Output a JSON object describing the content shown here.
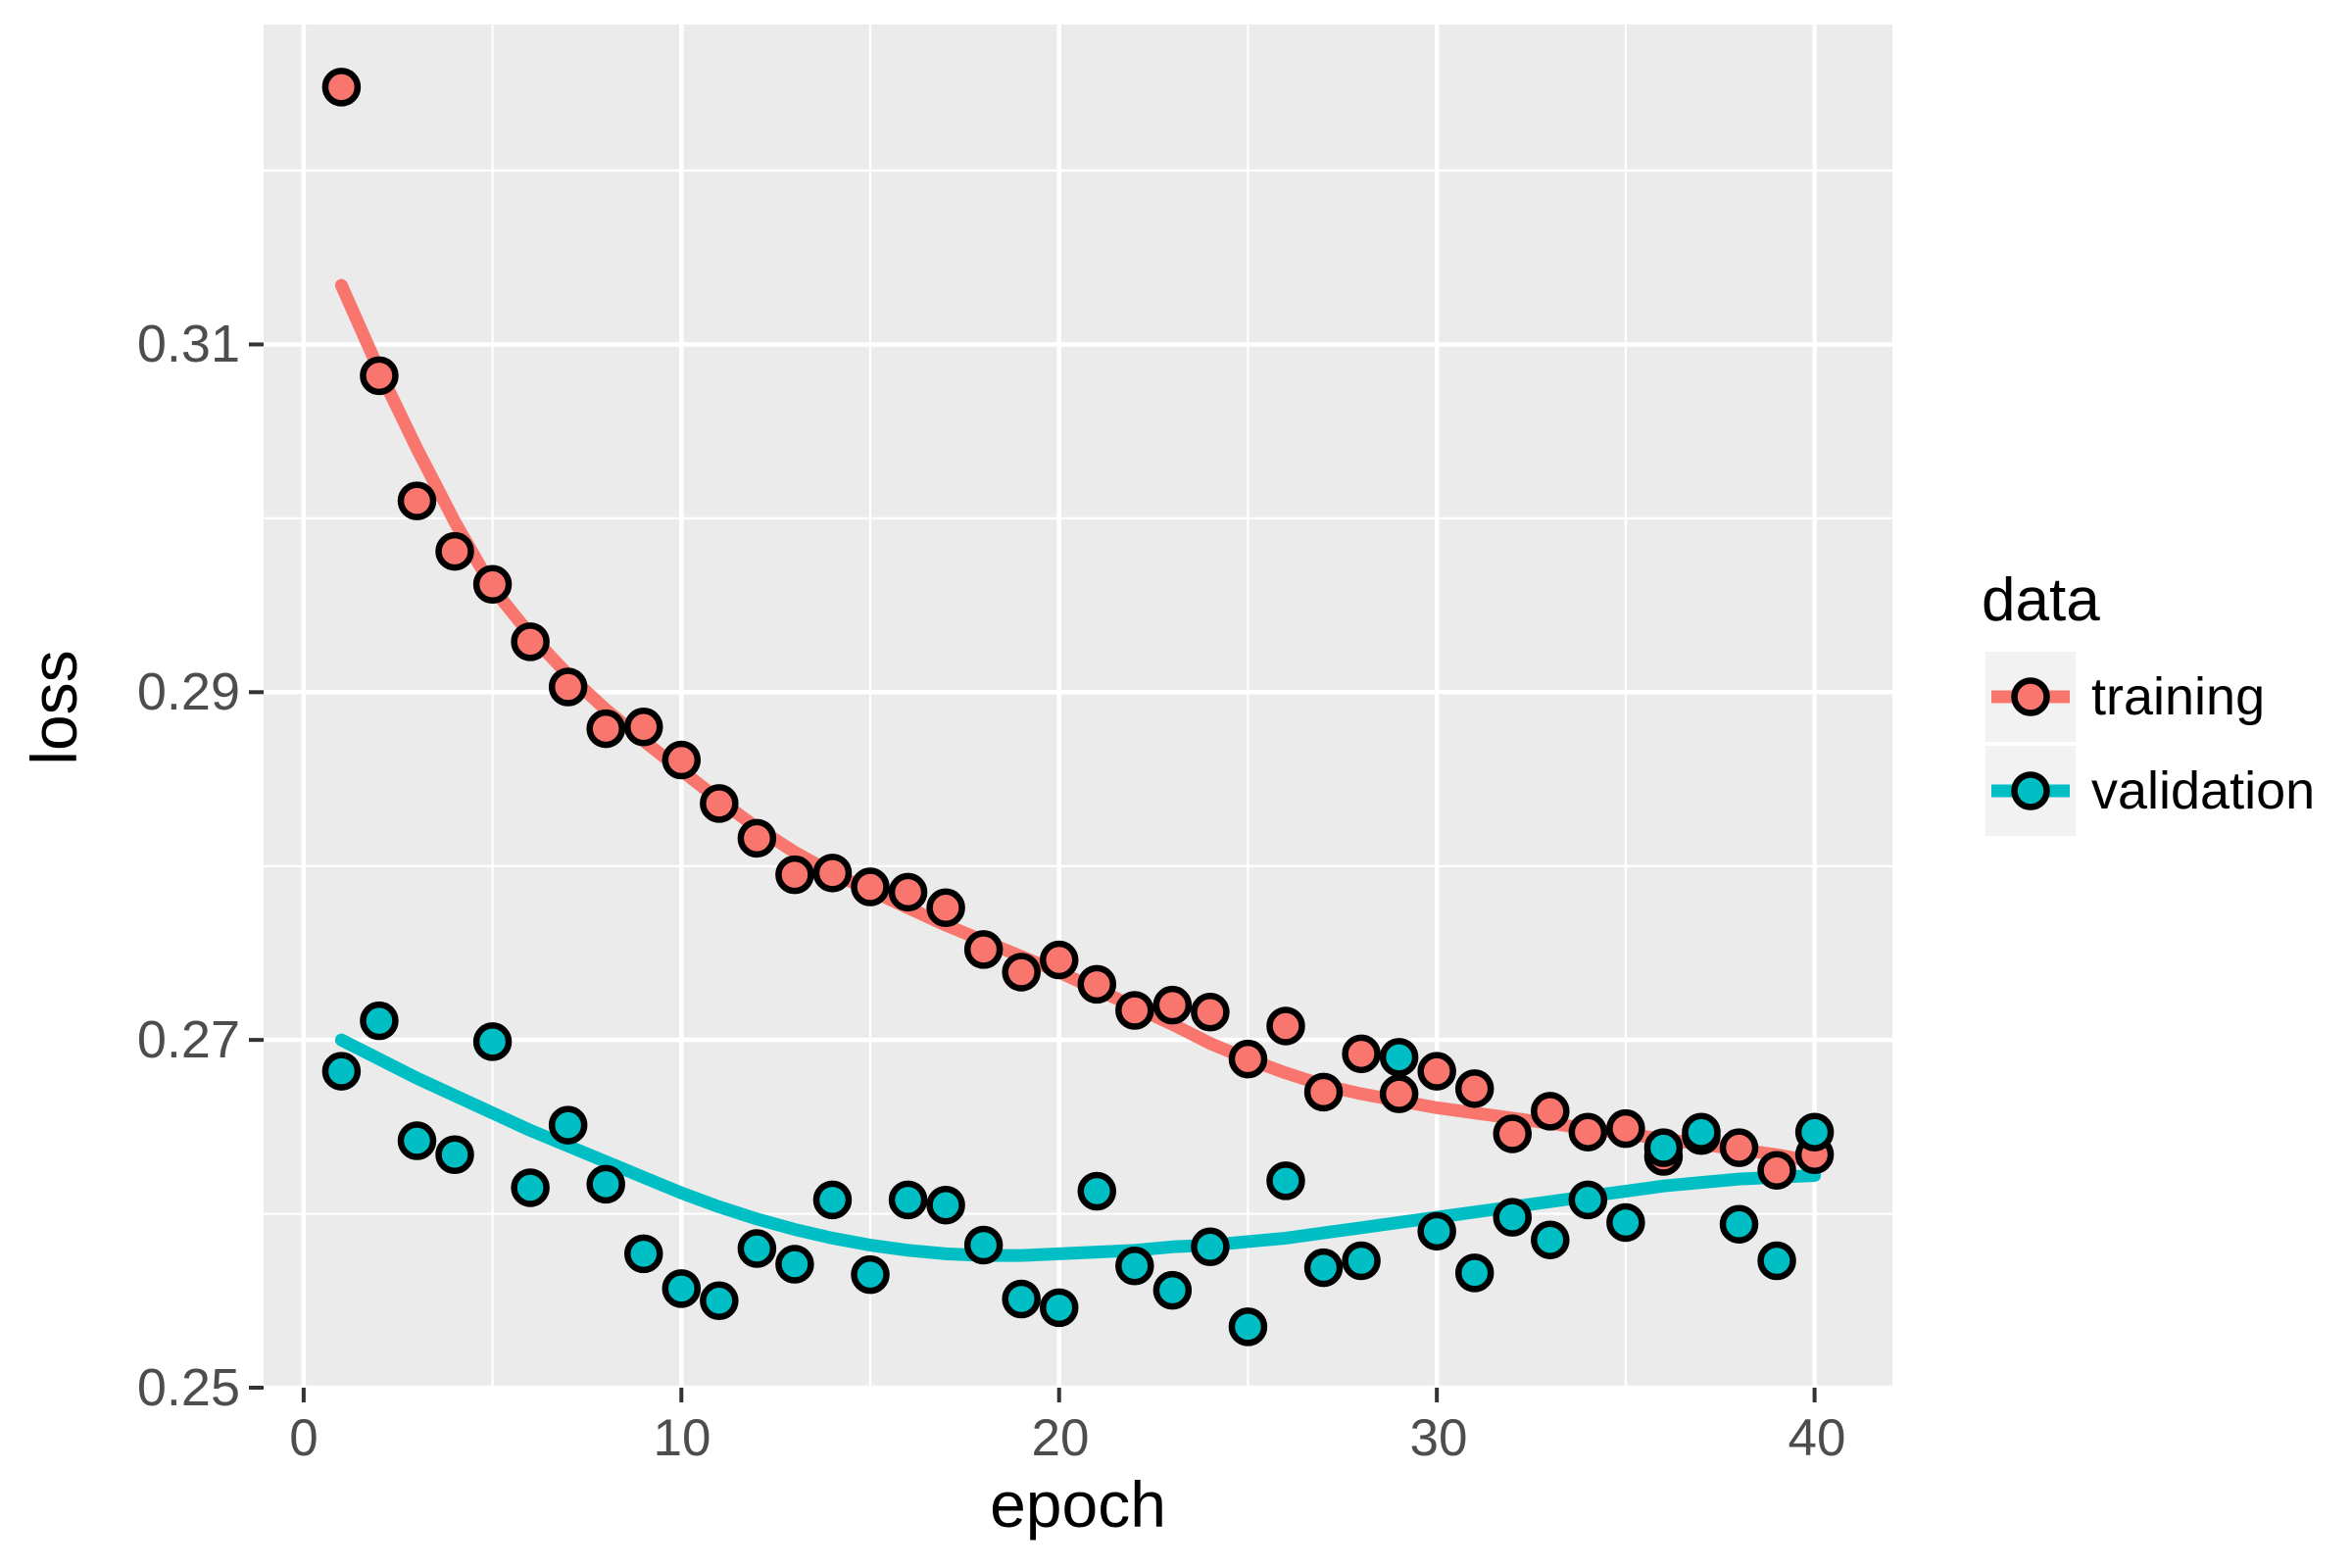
{
  "chart_data": {
    "type": "scatter",
    "title": "",
    "xlabel": "epoch",
    "ylabel": "loss",
    "legend": {
      "title": "data",
      "position": "right",
      "entries": [
        {
          "label": "training",
          "color": "#F8766D"
        },
        {
          "label": "validation",
          "color": "#00BFC4"
        }
      ]
    },
    "x": [
      1,
      2,
      3,
      4,
      5,
      6,
      7,
      8,
      9,
      10,
      11,
      12,
      13,
      14,
      15,
      16,
      17,
      18,
      19,
      20,
      21,
      22,
      23,
      24,
      25,
      26,
      27,
      28,
      29,
      30,
      31,
      32,
      33,
      34,
      35,
      36,
      37,
      38,
      39,
      40
    ],
    "series": [
      {
        "name": "training",
        "color": "#F8766D",
        "values": [
          0.3248,
          0.3082,
          0.301,
          0.2981,
          0.2962,
          0.2929,
          0.2903,
          0.2879,
          0.288,
          0.2861,
          0.2836,
          0.2816,
          0.2795,
          0.2796,
          0.2788,
          0.2785,
          0.2776,
          0.2752,
          0.2739,
          0.2746,
          0.2732,
          0.2717,
          0.272,
          0.2716,
          0.2689,
          0.2708,
          0.267,
          0.2692,
          0.2669,
          0.2682,
          0.2672,
          0.2646,
          0.2659,
          0.2647,
          0.2649,
          0.2633,
          0.2645,
          0.2638,
          0.2625,
          0.2634
        ],
        "smooth": [
          0.3134,
          0.3085,
          0.304,
          0.2998,
          0.296,
          0.2933,
          0.291,
          0.289,
          0.2872,
          0.2855,
          0.2838,
          0.2822,
          0.2808,
          0.2796,
          0.2786,
          0.2776,
          0.2766,
          0.2757,
          0.2748,
          0.2739,
          0.2729,
          0.2719,
          0.2709,
          0.2698,
          0.2689,
          0.2681,
          0.2674,
          0.2669,
          0.2665,
          0.2661,
          0.2658,
          0.2655,
          0.2652,
          0.2649,
          0.2646,
          0.2643,
          0.264,
          0.2637,
          0.2634,
          0.263
        ]
      },
      {
        "name": "validation",
        "color": "#00BFC4",
        "values": [
          0.2682,
          0.2711,
          0.2642,
          0.2634,
          0.2699,
          0.2615,
          0.2651,
          0.2617,
          0.2577,
          0.2557,
          0.255,
          0.258,
          0.2571,
          0.2608,
          0.2565,
          0.2608,
          0.2605,
          0.2582,
          0.2551,
          0.2546,
          0.2613,
          0.257,
          0.2556,
          0.2581,
          0.2535,
          0.2619,
          0.2569,
          0.2573,
          0.269,
          0.259,
          0.2566,
          0.2598,
          0.2585,
          0.2608,
          0.2595,
          0.2638,
          0.2647,
          0.2594,
          0.2573,
          0.2647
        ],
        "smooth": [
          0.27,
          0.2689,
          0.2678,
          0.2668,
          0.2658,
          0.2648,
          0.2639,
          0.263,
          0.2621,
          0.2612,
          0.2604,
          0.2597,
          0.2591,
          0.2586,
          0.2582,
          0.2579,
          0.2577,
          0.2576,
          0.2576,
          0.2577,
          0.2578,
          0.2579,
          0.2581,
          0.2582,
          0.2584,
          0.2586,
          0.2589,
          0.2592,
          0.2595,
          0.2598,
          0.2601,
          0.2604,
          0.2607,
          0.261,
          0.2613,
          0.2616,
          0.2618,
          0.262,
          0.2621,
          0.2622
        ]
      }
    ],
    "axes": {
      "x": {
        "ticks": [
          0,
          10,
          20,
          30,
          40
        ],
        "tick_labels": [
          "0",
          "10",
          "20",
          "30",
          "40"
        ],
        "minor_ticks": [
          5,
          15,
          25,
          35
        ],
        "range": [
          -1.06,
          42.06
        ]
      },
      "y": {
        "ticks": [
          0.25,
          0.27,
          0.29,
          0.31
        ],
        "tick_labels": [
          "0.25",
          "0.27",
          "0.29",
          "0.31"
        ],
        "minor_ticks": [
          0.26,
          0.28,
          0.3,
          0.32
        ],
        "range": [
          0.25,
          0.3284
        ]
      }
    },
    "style": {
      "panel_bg": "#EBEBEB",
      "grid_major": "#FFFFFF",
      "grid_minor": "#FFFFFF",
      "tick_color": "#333333",
      "tick_label_color": "#4D4D4D",
      "point_stroke": "#000000",
      "legend_key_bg": "#F2F2F2"
    }
  }
}
